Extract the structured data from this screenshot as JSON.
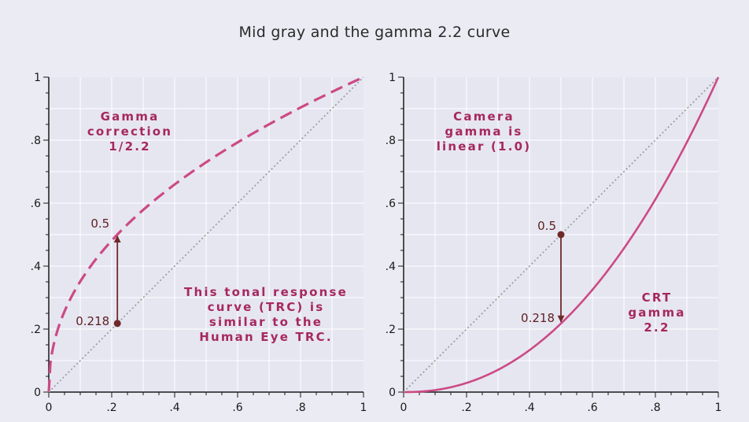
{
  "title": "Mid gray and the gamma 2.2 curve",
  "chart_data": [
    {
      "type": "line",
      "xlim": [
        0,
        1
      ],
      "ylim": [
        0,
        1
      ],
      "x_ticks": [
        0,
        0.2,
        0.4,
        0.6,
        0.8,
        1
      ],
      "x_tick_labels": [
        "0",
        ".2",
        ".4",
        ".6",
        ".8",
        "1"
      ],
      "y_ticks": [
        0,
        0.2,
        0.4,
        0.6,
        0.8,
        1
      ],
      "y_tick_labels": [
        "0",
        ".2",
        ".4",
        ".6",
        ".8",
        "1"
      ],
      "grid": true,
      "series": [
        {
          "style": "dashed",
          "color": "#cc4a85",
          "function": "y = x^(1/2.2)"
        },
        {
          "style": "dotted",
          "color": "#999999",
          "function": "y = x"
        }
      ],
      "marker": {
        "x": 0.218,
        "y": 0.218,
        "color": "#6e2a2a"
      },
      "arrow": {
        "x": 0.218,
        "from_y": 0.218,
        "to_y": 0.5,
        "color": "#6e2a2a"
      },
      "point_labels": [
        {
          "text": "0.5",
          "x": 0.218,
          "y": 0.5
        },
        {
          "text": "0.218",
          "x": 0.218,
          "y": 0.218
        }
      ],
      "annotations": [
        {
          "lines": [
            "Gamma",
            "correction",
            "1/2.2"
          ],
          "color": "#a6285e"
        },
        {
          "lines": [
            "This tonal response",
            "curve (TRC) is",
            "similar to the",
            "Human Eye TRC."
          ],
          "color": "#a6285e"
        }
      ]
    },
    {
      "type": "line",
      "xlim": [
        0,
        1
      ],
      "ylim": [
        0,
        1
      ],
      "x_ticks": [
        0,
        0.2,
        0.4,
        0.6,
        0.8,
        1
      ],
      "x_tick_labels": [
        "0",
        ".2",
        ".4",
        ".6",
        ".8",
        "1"
      ],
      "y_ticks": [
        0,
        0.2,
        0.4,
        0.6,
        0.8,
        1
      ],
      "y_tick_labels": [
        "0",
        ".2",
        ".4",
        ".6",
        ".8",
        "1"
      ],
      "grid": true,
      "series": [
        {
          "style": "solid",
          "color": "#cc4a85",
          "function": "y = x^2.2"
        },
        {
          "style": "dotted",
          "color": "#999999",
          "function": "y = x"
        }
      ],
      "marker": {
        "x": 0.5,
        "y": 0.5,
        "color": "#6e2a2a"
      },
      "arrow": {
        "x": 0.5,
        "from_y": 0.5,
        "to_y": 0.218,
        "color": "#6e2a2a"
      },
      "point_labels": [
        {
          "text": "0.5",
          "x": 0.5,
          "y": 0.5
        },
        {
          "text": "0.218",
          "x": 0.5,
          "y": 0.218
        }
      ],
      "annotations": [
        {
          "lines": [
            "Camera",
            "gamma is",
            "linear (1.0)"
          ],
          "color": "#a6285e"
        },
        {
          "lines": [
            "CRT",
            "gamma",
            "2.2"
          ],
          "color": "#a6285e"
        }
      ]
    }
  ]
}
